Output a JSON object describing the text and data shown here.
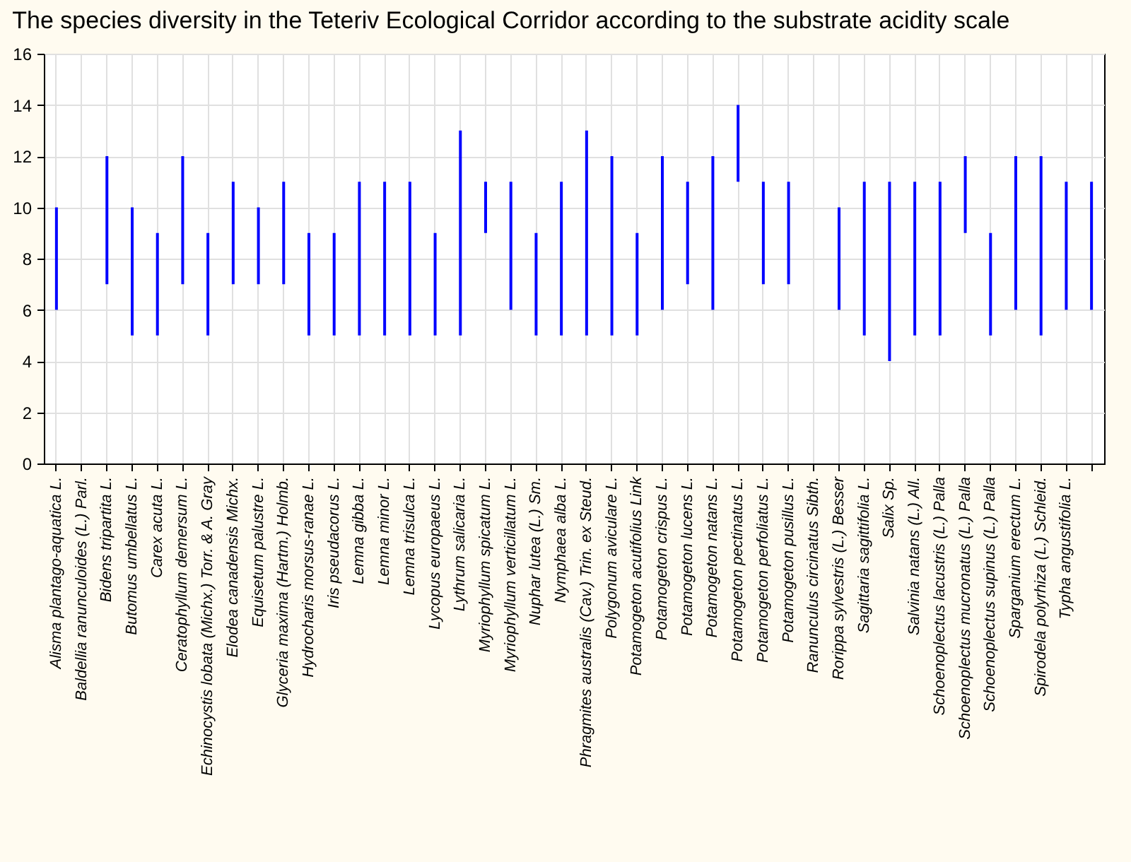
{
  "chart_data": {
    "type": "bar",
    "title": "The species diversity in the Teteriv Ecological Corridor according to the substrate acidity scale",
    "categories": [
      "Alisma plantago-aquatica L.",
      "Baldellia ranunculoides (L.) Parl.",
      "Bidens tripartita L.",
      "Butomus umbellatus L.",
      "Carex acuta L.",
      "Ceratophyllum demersum L.",
      "Echinocystis lobata (Michx.) Torr. & A. Gray",
      "Elodea canadensis Michx.",
      "Equisetum palustre L.",
      "Glyceria maxima (Hartm.) Holmb.",
      "Hydrocharis morsus-ranae L.",
      "Iris pseudacorus L.",
      "Lemna gibba L.",
      "Lemna minor L.",
      "Lemna trisulca L.",
      "Lycopus europaeus L.",
      "Lythrum salicaria L.",
      "Myriophyllum spicatum L.",
      "Myriophyllum verticillatum L.",
      "Nuphar lutea (L.) Sm.",
      "Nymphaea alba L.",
      "Phragmites australis (Cav.) Trin. ex Steud.",
      "Polygonum aviculare L.",
      "Potamogeton acutifolius Link",
      "Potamogeton crispus L.",
      "Potamogeton lucens L.",
      "Potamogeton natans L.",
      "Potamogeton pectinatus L.",
      "Potamogeton perfoliatus L.",
      "Potamogeton pusillus L.",
      "Ranunculus circinatus Sibth.",
      "Rorippa sylvestris (L.) Besser",
      "Sagittaria sagittifolia L.",
      "Salix Sp.",
      "Salvinia natans (L.) All.",
      "Schoenoplectus lacustris (L.) Palla",
      "Schoenoplectus mucronatus (L.) Palla",
      "Schoenoplectus supinus (L.) Palla",
      "Sparganium erectum L.",
      "Spirodela polyrhiza (L.) Schleid.",
      "Typha angustifolia L.",
      null
    ],
    "base": [
      6,
      null,
      7,
      5,
      5,
      7,
      5,
      7,
      7,
      7,
      5,
      5,
      5,
      5,
      5,
      5,
      5,
      9,
      6,
      5,
      5,
      5,
      5,
      5,
      6,
      7,
      6,
      11,
      7,
      7,
      null,
      6,
      5,
      4,
      5,
      5,
      9,
      5,
      6,
      5,
      6,
      6
    ],
    "values": [
      4,
      null,
      5,
      5,
      4,
      5,
      4,
      4,
      3,
      4,
      4,
      4,
      6,
      6,
      6,
      4,
      8,
      2,
      5,
      4,
      6,
      8,
      7,
      4,
      6,
      4,
      6,
      3,
      4,
      4,
      null,
      4,
      6,
      7,
      6,
      6,
      3,
      4,
      6,
      7,
      5,
      5
    ],
    "color": "#0000ff",
    "ylim": [
      0,
      16
    ],
    "yticks": [
      0,
      2,
      4,
      6,
      8,
      10,
      12,
      14,
      16
    ],
    "grid": true
  }
}
